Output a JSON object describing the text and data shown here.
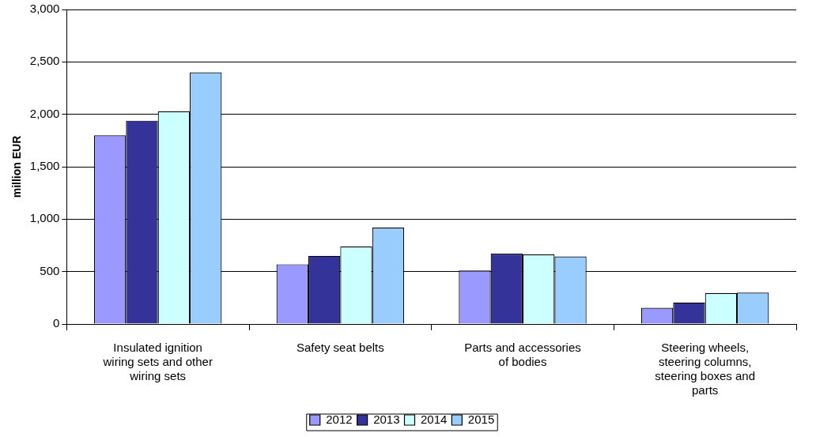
{
  "chart_data": {
    "type": "bar",
    "ylabel": "million EUR",
    "categories": [
      "Insulated ignition wiring sets and other wiring sets",
      "Safety seat belts",
      "Parts and accessories of bodies",
      "Steering wheels, steering columns, steering boxes and parts"
    ],
    "series": [
      {
        "name": "2012",
        "color": "#9999ff",
        "values": [
          1800,
          570,
          510,
          155
        ]
      },
      {
        "name": "2013",
        "color": "#333399",
        "values": [
          1940,
          650,
          670,
          205
        ]
      },
      {
        "name": "2014",
        "color": "#ccffff",
        "values": [
          2030,
          740,
          665,
          295
        ]
      },
      {
        "name": "2015",
        "color": "#99ccff",
        "values": [
          2400,
          920,
          645,
          300
        ]
      }
    ],
    "ylim": [
      0,
      3000
    ],
    "yticks": [
      0,
      500,
      {
        "value": 1000,
        "label": "1,000"
      },
      {
        "value": 1500,
        "label": "1,500"
      },
      {
        "value": 2000,
        "label": "2,000"
      },
      {
        "value": 2500,
        "label": "2,500"
      },
      {
        "value": 3000,
        "label": "3,000"
      }
    ],
    "grid": "y",
    "legend": "bottom"
  }
}
